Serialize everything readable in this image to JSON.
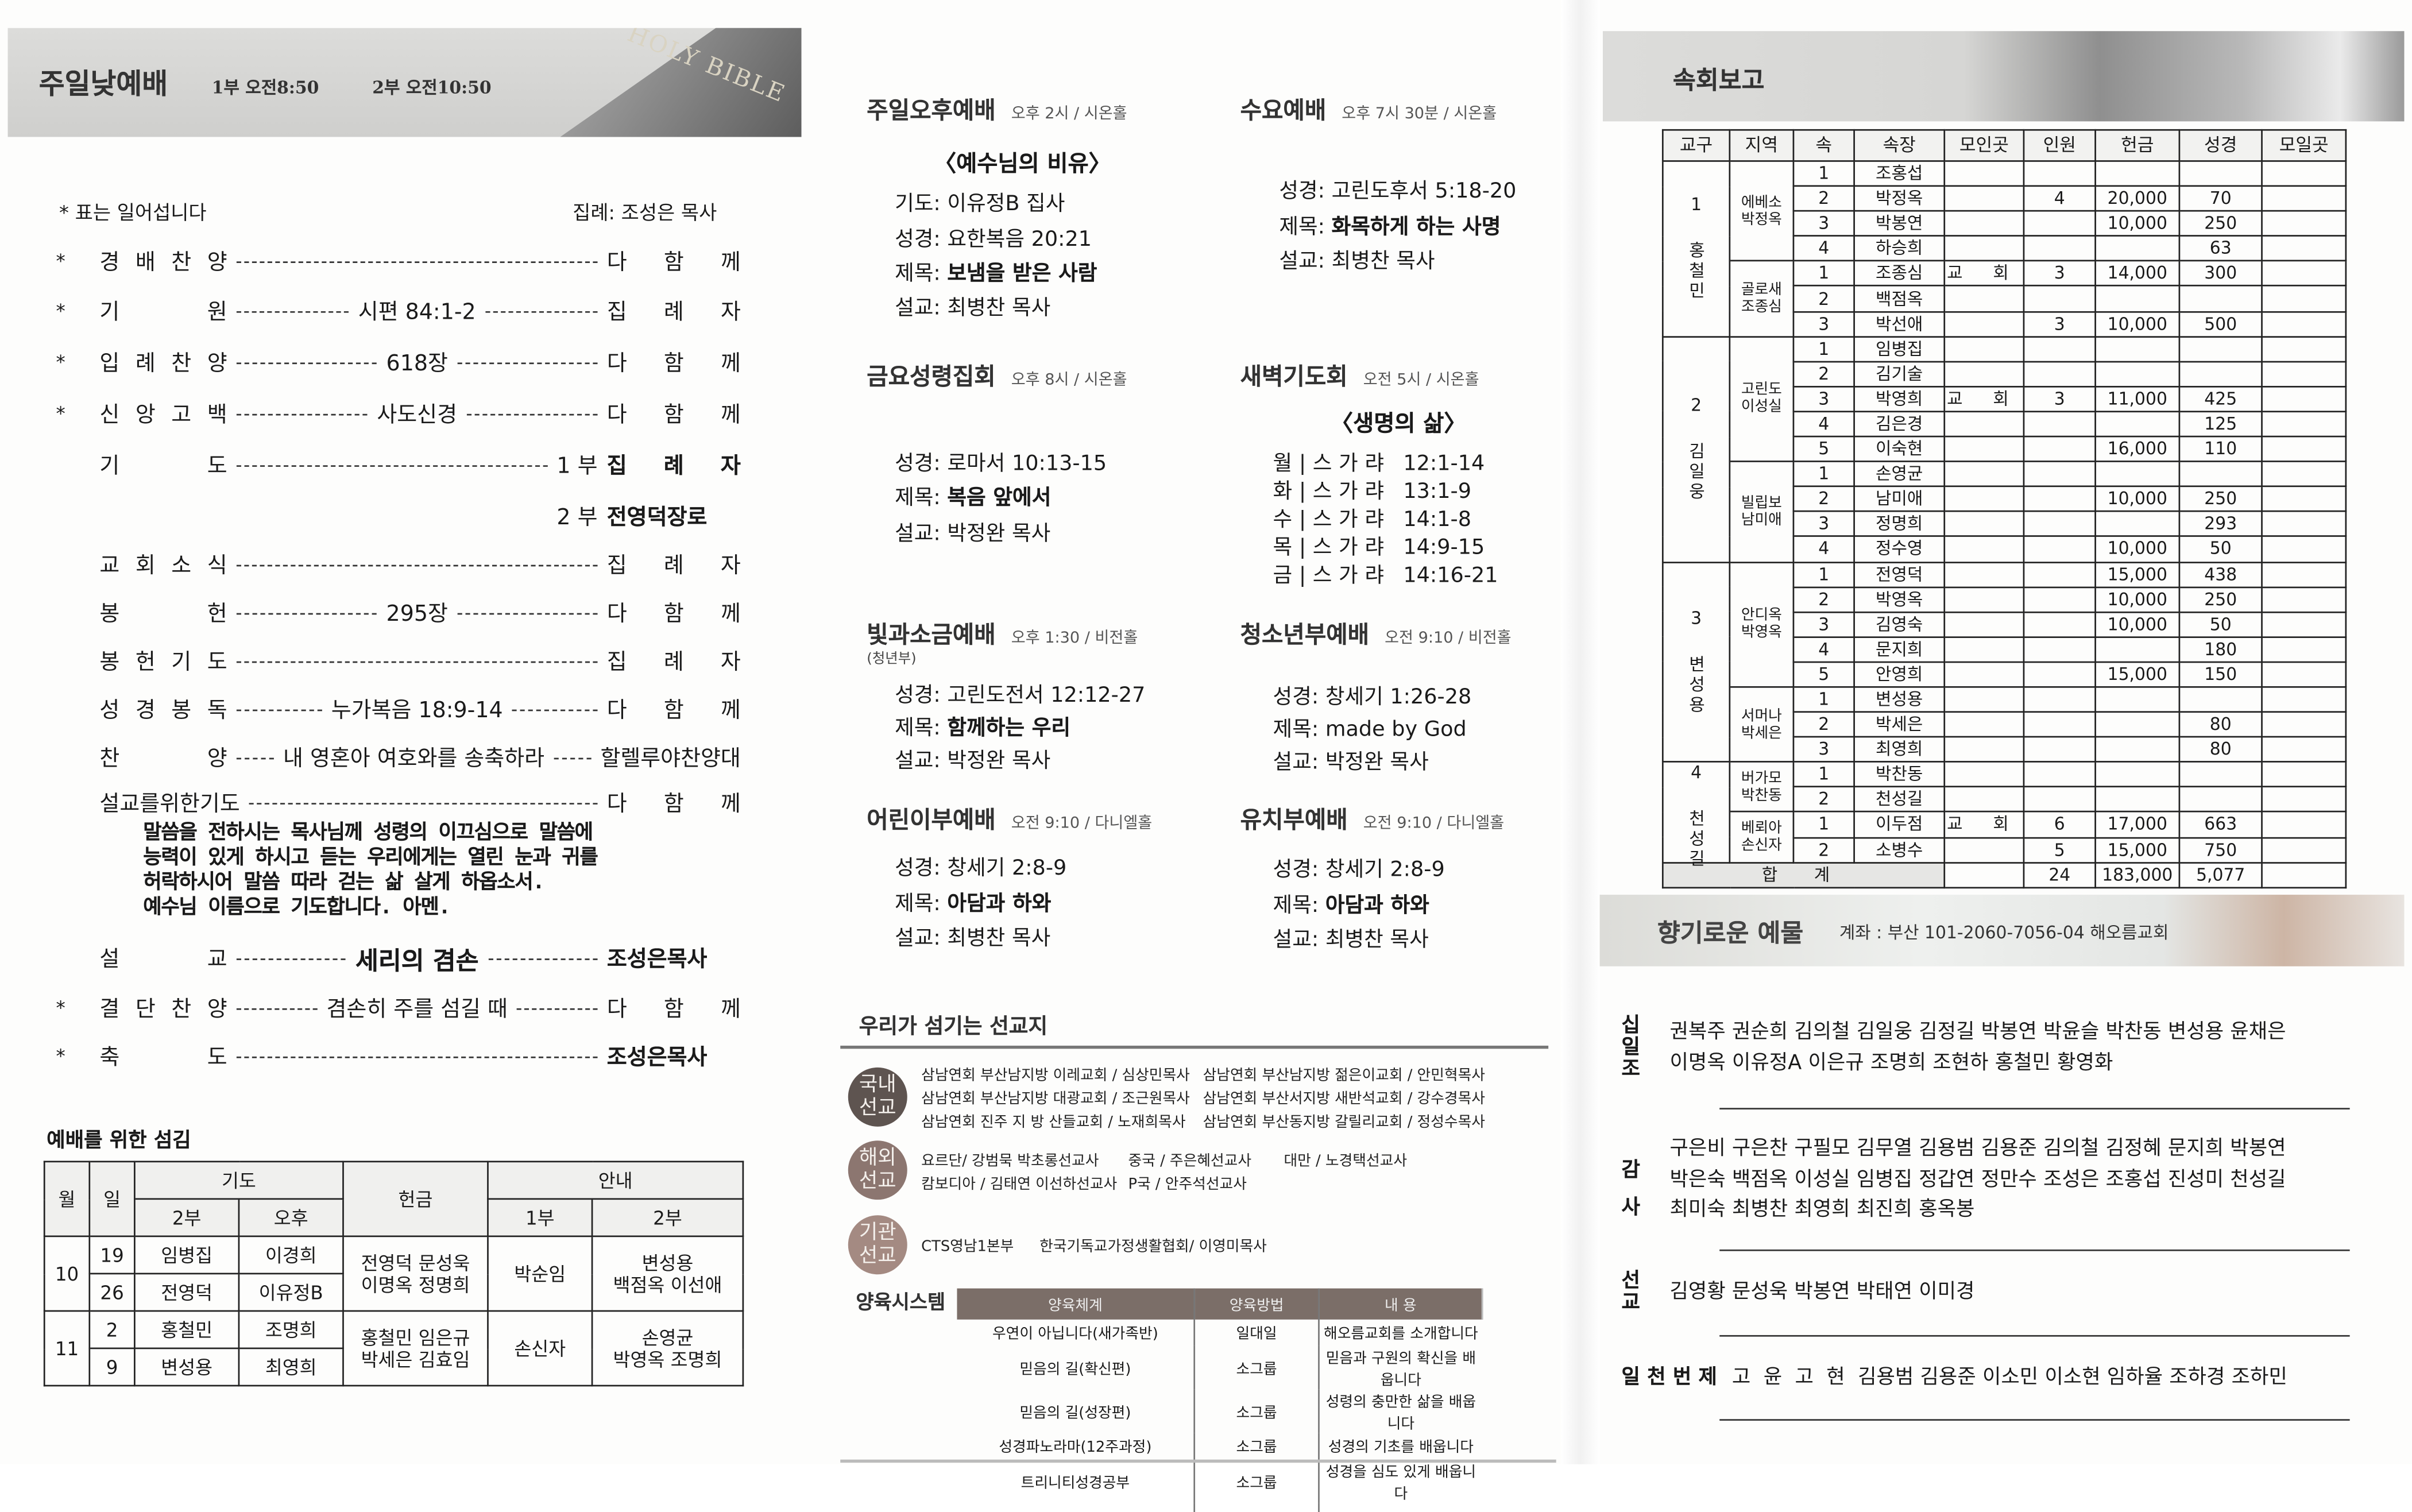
{
  "left": {
    "header": {
      "title": "주일낮예배",
      "time1": "1부 오전8:50",
      "time2": "2부 오전10:50",
      "logo_text": "HOLY BIBLE"
    },
    "note": "* 표는 일어섭니다",
    "presider": "집례: 조성은 목사",
    "order": [
      {
        "star": "*",
        "label": "경 배 찬 양",
        "mid": "",
        "pre": "",
        "right": "다 함 께",
        "bold": false
      },
      {
        "star": "*",
        "label": "기 원",
        "mid": "시편 84:1-2",
        "pre": "",
        "right": "집 례 자",
        "bold": false
      },
      {
        "star": "*",
        "label": "입 례 찬 양",
        "mid": "618장",
        "pre": "",
        "right": "다 함 께",
        "bold": false
      },
      {
        "star": "*",
        "label": "신 앙 고 백",
        "mid": "사도신경",
        "pre": "",
        "right": "다 함 께",
        "bold": false
      },
      {
        "star": "",
        "label": "기 도",
        "mid": "",
        "pre": "1 부",
        "right": "집 례 자",
        "bold": true
      },
      {
        "star": "",
        "label": "",
        "mid": "",
        "pre": "2 부",
        "right": "전영덕장로",
        "bold": true,
        "nodash": true
      },
      {
        "star": "",
        "label": "교 회 소 식",
        "mid": "",
        "pre": "",
        "right": "집 례 자",
        "bold": false
      },
      {
        "star": "",
        "label": "봉 헌",
        "mid": "295장",
        "pre": "",
        "right": "다 함 께",
        "bold": false
      },
      {
        "star": "",
        "label": "봉 헌 기 도",
        "mid": "",
        "pre": "",
        "right": "집 례 자",
        "bold": false
      },
      {
        "star": "",
        "label": "성 경 봉 독",
        "mid": "누가복음 18:9-14",
        "pre": "",
        "right": "다 함 께",
        "bold": false
      },
      {
        "star": "",
        "label": "찬 양",
        "mid": "내 영혼아 여호와를 송축하라",
        "pre": "",
        "right": "할렐루야찬양대",
        "bold": false
      },
      {
        "star": "",
        "label": "설교를위한기도",
        "mid": "",
        "pre": "",
        "right": "다 함 께",
        "bold": false,
        "free": true
      },
      {
        "star": "",
        "label": "설 교",
        "mid": "세리의 겸손",
        "pre": "",
        "right": "조성은목사",
        "bold": true,
        "midbold": true
      },
      {
        "star": "*",
        "label": "결 단 찬 양",
        "mid": "겸손히 주를 섬길 때",
        "pre": "",
        "right": "다 함 께",
        "bold": false
      },
      {
        "star": "*",
        "label": "축 도",
        "mid": "",
        "pre": "",
        "right": "조성은목사",
        "bold": true
      }
    ],
    "prayer": [
      "말씀을 전하시는 목사님께 성령의 이끄심으로 말씀에",
      "능력이 있게 하시고 듣는 우리에게는 열린 눈과 귀를",
      "허락하시어 말씀 따라 걷는 삶 살게 하옵소서.",
      "예수님 이름으로 기도합니다. 아멘."
    ],
    "schedule": {
      "title": "예배를 위한 섬김",
      "headers": {
        "month": "월",
        "day": "일",
        "prayer": "기도",
        "prayer_2": "2부",
        "prayer_pm": "오후",
        "offering": "헌금",
        "usher": "안내",
        "usher_1": "1부",
        "usher_2": "2부"
      },
      "months": [
        {
          "month": "10",
          "days": [
            {
              "day": "19",
              "p2": "임병집",
              "pm": "이경희"
            },
            {
              "day": "26",
              "p2": "전영덕",
              "pm": "이유정B"
            }
          ],
          "offering": [
            "전영덕 문성욱",
            "이명옥 정명희"
          ],
          "usher1": "박순임",
          "usher2": [
            "변성용",
            "백점옥 이선애"
          ]
        },
        {
          "month": "11",
          "days": [
            {
              "day": "2",
              "p2": "홍철민",
              "pm": "조명희"
            },
            {
              "day": "9",
              "p2": "변성용",
              "pm": "최영희"
            }
          ],
          "offering": [
            "홍철민 임은규",
            "박세은 김효임"
          ],
          "usher1": "손신자",
          "usher2": [
            "손영균",
            "박영옥 조명희"
          ]
        }
      ]
    }
  },
  "middle": {
    "services": [
      {
        "title": "주일오후예배",
        "meta": "오후 2시 / 시온홀",
        "theme": "〈예수님의 비유〉",
        "lines": [
          {
            "k": "기도:",
            "v": "이유정B 집사"
          },
          {
            "k": "성경:",
            "v": "요한복음 20:21"
          },
          {
            "k": "제목:",
            "v": "보냄을 받은 사람",
            "bold": true
          },
          {
            "k": "설교:",
            "v": "최병찬 목사"
          }
        ]
      },
      {
        "title": "수요예배",
        "meta": "오후 7시 30분 / 시온홀",
        "lines": [
          {
            "k": "성경:",
            "v": "고린도후서 5:18-20"
          },
          {
            "k": "제목:",
            "v": "화목하게 하는 사명",
            "bold": true
          },
          {
            "k": "설교:",
            "v": "최병찬 목사"
          }
        ]
      },
      {
        "title": "금요성령집회",
        "meta": "오후 8시 / 시온홀",
        "lines": [
          {
            "k": "성경:",
            "v": "로마서 10:13-15"
          },
          {
            "k": "제목:",
            "v": "복음 앞에서",
            "bold": true
          },
          {
            "k": "설교:",
            "v": "박정완 목사"
          }
        ]
      },
      {
        "title": "새벽기도회",
        "meta": "오전 5시 / 시온홀",
        "theme": "〈생명의 삶〉",
        "lines": [
          {
            "k": "월 | 스 가 랴",
            "v": "12:1-14"
          },
          {
            "k": "화 | 스 가 랴",
            "v": "13:1-9"
          },
          {
            "k": "수 | 스 가 랴",
            "v": "14:1-8"
          },
          {
            "k": "목 | 스 가 랴",
            "v": "14:9-15"
          },
          {
            "k": "금 | 스 가 랴",
            "v": "14:16-21"
          }
        ]
      },
      {
        "title": "빛과소금예배",
        "meta": "오후 1:30 / 비전홀",
        "sub": "(청년부)",
        "lines": [
          {
            "k": "성경:",
            "v": "고린도전서 12:12-27"
          },
          {
            "k": "제목:",
            "v": "함께하는 우리",
            "bold": true
          },
          {
            "k": "설교:",
            "v": "박정완 목사"
          }
        ]
      },
      {
        "title": "청소년부예배",
        "meta": "오전 9:10 / 비전홀",
        "lines": [
          {
            "k": "성경:",
            "v": "창세기 1:26-28"
          },
          {
            "k": "제목:",
            "v": "made by God"
          },
          {
            "k": "설교:",
            "v": "박정완 목사"
          }
        ]
      },
      {
        "title": "어린이부예배",
        "meta": "오전 9:10 / 다니엘홀",
        "lines": [
          {
            "k": "성경:",
            "v": "창세기 2:8-9"
          },
          {
            "k": "제목:",
            "v": "아담과 하와",
            "bold": true
          },
          {
            "k": "설교:",
            "v": "최병찬 목사"
          }
        ]
      },
      {
        "title": "유치부예배",
        "meta": "오전 9:10 / 다니엘홀",
        "lines": [
          {
            "k": "성경:",
            "v": "창세기 2:8-9"
          },
          {
            "k": "제목:",
            "v": "아담과 하와",
            "bold": true
          },
          {
            "k": "설교:",
            "v": "최병찬 목사"
          }
        ]
      }
    ],
    "missions": {
      "title": "우리가 섬기는 선교지",
      "groups": [
        {
          "badge": "국내 선교",
          "color": "#5e5450",
          "rows": [
            [
              "삼남연회 부산남지방 이레교회 / 심상민목사",
              "삼남연회 부산남지방 젊은이교회 / 안민혁목사"
            ],
            [
              "삼남연회 부산남지방 대광교회 / 조근원목사",
              "삼남연회 부산서지방 새반석교회 / 강수경목사"
            ],
            [
              "삼남연회 진주 지 방 산들교회 / 노재희목사",
              "삼남연회 부산동지방 갈릴리교회 / 정성수목사"
            ]
          ]
        },
        {
          "badge": "해외 선교",
          "color": "#8c7670",
          "rows": [
            [
              "요르단/ 강범묵 박초롱선교사",
              "중국 / 주은혜선교사",
              "대만 / 노경택선교사"
            ],
            [
              "캄보디아 / 김태연 이선하선교사",
              "P국 / 안주석선교사"
            ]
          ]
        },
        {
          "badge": "기관 선교",
          "color": "#a48a82",
          "rows": [
            [
              "CTS영남1본부",
              "한국기독교가정생활협회/ 이영미목사"
            ]
          ]
        }
      ]
    },
    "education": {
      "title": "양육시스템",
      "headers": [
        "양육체계",
        "양육방법",
        "내 용"
      ],
      "rows": [
        [
          "우연이 아닙니다(새가족반)",
          "일대일",
          "해오름교회를 소개합니다"
        ],
        [
          "믿음의 길(확신편)",
          "소그룹",
          "믿음과 구원의 확신을 배웁니다"
        ],
        [
          "믿음의 길(성장편)",
          "소그룹",
          "성령의 충만한 삶을 배웁니다"
        ],
        [
          "성경파노라마(12주과정)",
          "소그룹",
          "성경의 기초를 배웁니다"
        ],
        [
          "트리니티성경공부",
          "소그룹",
          "성경을 심도 있게 배웁니다"
        ]
      ]
    }
  },
  "right": {
    "report": {
      "title": "속회보고",
      "headers": [
        "교구",
        "지역",
        "속",
        "속장",
        "모인곳",
        "인원",
        "헌금",
        "성경",
        "모일곳"
      ],
      "districts": [
        {
          "num": "1",
          "leader": "홍철민",
          "groups": [
            {
              "region": "에베소",
              "leader": "박정옥",
              "members": [
                {
                  "n": "1",
                  "name": "조홍섭"
                },
                {
                  "n": "2",
                  "name": "박정옥",
                  "count": "4",
                  "offering": "20,000",
                  "bible": "70"
                },
                {
                  "n": "3",
                  "name": "박봉연",
                  "offering": "10,000",
                  "bible": "250"
                },
                {
                  "n": "4",
                  "name": "하승희",
                  "bible": "63"
                }
              ]
            },
            {
              "region": "골로새",
              "leader": "조종심",
              "members": [
                {
                  "n": "1",
                  "name": "조종심",
                  "place": "교 회",
                  "count": "3",
                  "offering": "14,000",
                  "bible": "300"
                },
                {
                  "n": "2",
                  "name": "백점옥"
                },
                {
                  "n": "3",
                  "name": "박선애",
                  "count": "3",
                  "offering": "10,000",
                  "bible": "500"
                }
              ]
            }
          ]
        },
        {
          "num": "2",
          "leader": "김일웅",
          "groups": [
            {
              "region": "고린도",
              "leader": "이성실",
              "members": [
                {
                  "n": "1",
                  "name": "임병집"
                },
                {
                  "n": "2",
                  "name": "김기술"
                },
                {
                  "n": "3",
                  "name": "박영희",
                  "place": "교 회",
                  "count": "3",
                  "offering": "11,000",
                  "bible": "425"
                },
                {
                  "n": "4",
                  "name": "김은경",
                  "bible": "125"
                },
                {
                  "n": "5",
                  "name": "이숙현",
                  "offering": "16,000",
                  "bible": "110"
                }
              ]
            },
            {
              "region": "빌립보",
              "leader": "남미애",
              "members": [
                {
                  "n": "1",
                  "name": "손영균"
                },
                {
                  "n": "2",
                  "name": "남미애",
                  "offering": "10,000",
                  "bible": "250"
                },
                {
                  "n": "3",
                  "name": "정명희",
                  "bible": "293"
                },
                {
                  "n": "4",
                  "name": "정수영",
                  "offering": "10,000",
                  "bible": "50"
                }
              ]
            }
          ]
        },
        {
          "num": "3",
          "leader": "변성용",
          "groups": [
            {
              "region": "안디옥",
              "leader": "박영옥",
              "members": [
                {
                  "n": "1",
                  "name": "전영덕",
                  "offering": "15,000",
                  "bible": "438"
                },
                {
                  "n": "2",
                  "name": "박영옥",
                  "offering": "10,000",
                  "bible": "250"
                },
                {
                  "n": "3",
                  "name": "김영숙",
                  "offering": "10,000",
                  "bible": "50"
                },
                {
                  "n": "4",
                  "name": "문지희",
                  "bible": "180"
                },
                {
                  "n": "5",
                  "name": "안영희",
                  "offering": "15,000",
                  "bible": "150"
                }
              ]
            },
            {
              "region": "서머나",
              "leader": "박세은",
              "members": [
                {
                  "n": "1",
                  "name": "변성용"
                },
                {
                  "n": "2",
                  "name": "박세은",
                  "bible": "80"
                },
                {
                  "n": "3",
                  "name": "최영희",
                  "bible": "80"
                }
              ]
            }
          ]
        },
        {
          "num": "4",
          "leader": "천성길",
          "groups": [
            {
              "region": "버가모",
              "leader": "박찬동",
              "members": [
                {
                  "n": "1",
                  "name": "박찬동"
                },
                {
                  "n": "2",
                  "name": "천성길"
                }
              ]
            },
            {
              "region": "베뢰아",
              "leader": "손신자",
              "members": [
                {
                  "n": "1",
                  "name": "이두점",
                  "place": "교 회",
                  "count": "6",
                  "offering": "17,000",
                  "bible": "663"
                },
                {
                  "n": "2",
                  "name": "소병수",
                  "count": "5",
                  "offering": "15,000",
                  "bible": "750"
                }
              ]
            }
          ]
        }
      ],
      "total": {
        "label": "합 계",
        "count": "24",
        "offering": "183,000",
        "bible": "5,077"
      }
    },
    "gifts": {
      "title": "향기로운 예물",
      "account": "계좌 : 부산 101-2060-7056-04 해오름교회",
      "sections": [
        {
          "label": "십일조",
          "lines": [
            "권복주 권순희 김의철 김일웅 김정길 박봉연 박윤슬 박찬동 변성용 윤채은",
            "이명옥 이유정A 이은규 조명희 조현하 홍철민 황영화"
          ]
        },
        {
          "label": "감사",
          "lines": [
            "구은비 구은찬 구필모 김무열 김용범 김용준 김의철 김정혜 문지희 박봉연",
            "박은숙 백점옥 이성실 임병집 정갑연 정만수 조성은 조홍섭 진성미 천성길",
            "최미숙 최병찬 최영희 최진희 홍옥봉"
          ]
        },
        {
          "label": "선교",
          "lines": [
            "김영황 문성욱 박봉연 박태연 이미경"
          ]
        },
        {
          "label": "일 천 번 제",
          "lines": [
            "고  윤  고  현  김용범 김용준 이소민 이소현 임하율 조하경 조하민"
          ]
        }
      ]
    }
  }
}
